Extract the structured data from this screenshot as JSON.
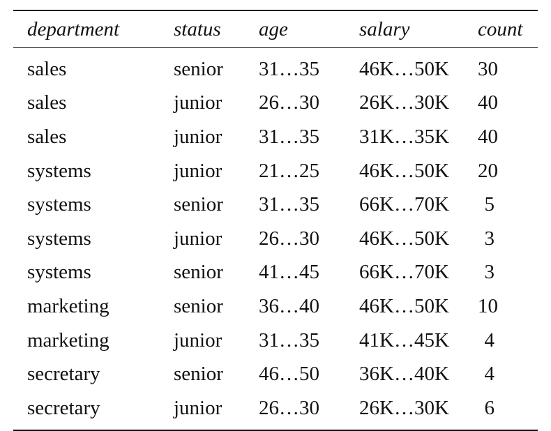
{
  "table": {
    "headers": [
      "department",
      "status",
      "age",
      "salary",
      "count"
    ],
    "rows": [
      [
        "sales",
        "senior",
        "31…35",
        "46K…50K",
        "30"
      ],
      [
        "sales",
        "junior",
        "26…30",
        "26K…30K",
        "40"
      ],
      [
        "sales",
        "junior",
        "31…35",
        "31K…35K",
        "40"
      ],
      [
        "systems",
        "junior",
        "21…25",
        "46K…50K",
        "20"
      ],
      [
        "systems",
        "senior",
        "31…35",
        "66K…70K",
        "5"
      ],
      [
        "systems",
        "junior",
        "26…30",
        "46K…50K",
        "3"
      ],
      [
        "systems",
        "senior",
        "41…45",
        "66K…70K",
        "3"
      ],
      [
        "marketing",
        "senior",
        "36…40",
        "46K…50K",
        "10"
      ],
      [
        "marketing",
        "junior",
        "31…35",
        "41K…45K",
        "4"
      ],
      [
        "secretary",
        "senior",
        "46…50",
        "36K…40K",
        "4"
      ],
      [
        "secretary",
        "junior",
        "26…30",
        "26K…30K",
        "6"
      ]
    ]
  }
}
